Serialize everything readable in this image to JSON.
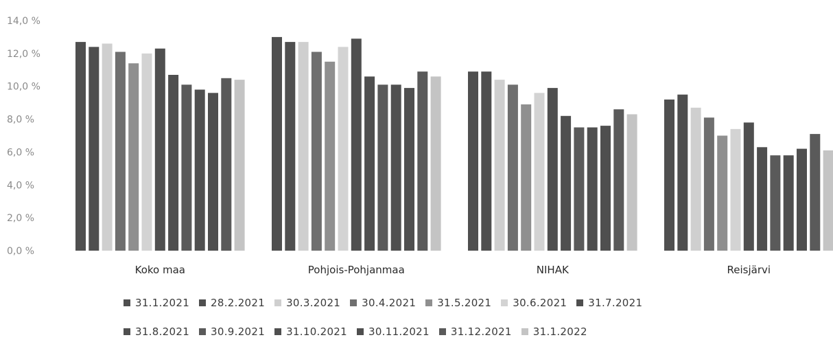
{
  "chart_data": {
    "type": "bar",
    "categories": [
      "Koko maa",
      "Pohjois-Pohjanmaa",
      "NIHAK",
      "Reisjärvi"
    ],
    "y_ticks": [
      "0,0 %",
      "2,0 %",
      "4,0 %",
      "6,0 %",
      "8,0 %",
      "10,0 %",
      "12,0 %",
      "14,0 %"
    ],
    "ylim": [
      0,
      14
    ],
    "grid": false,
    "legend_position": "bottom",
    "series": [
      {
        "name": "31.1.2021",
        "color": "#4f4f4f",
        "values": [
          12.7,
          13.0,
          10.9,
          9.2
        ]
      },
      {
        "name": "28.2.2021",
        "color": "#4f4f4f",
        "values": [
          12.4,
          12.7,
          10.9,
          9.5
        ]
      },
      {
        "name": "30.3.2021",
        "color": "#cfcfcf",
        "values": [
          12.6,
          12.7,
          10.4,
          8.7
        ]
      },
      {
        "name": "30.4.2021",
        "color": "#6f6f6f",
        "values": [
          12.1,
          12.1,
          10.1,
          8.1
        ]
      },
      {
        "name": "31.5.2021",
        "color": "#8f8f8f",
        "values": [
          11.4,
          11.5,
          8.9,
          7.0
        ]
      },
      {
        "name": "30.6.2021",
        "color": "#d3d3d3",
        "values": [
          12.0,
          12.4,
          9.6,
          7.4
        ]
      },
      {
        "name": "31.7.2021",
        "color": "#4f4f4f",
        "values": [
          12.3,
          12.9,
          9.9,
          7.8
        ]
      },
      {
        "name": "31.8.2021",
        "color": "#4f4f4f",
        "values": [
          10.7,
          10.6,
          8.2,
          6.3
        ]
      },
      {
        "name": "30.9.2021",
        "color": "#5a5a5a",
        "values": [
          10.1,
          10.1,
          7.5,
          5.8
        ]
      },
      {
        "name": "31.10.2021",
        "color": "#4f4f4f",
        "values": [
          9.8,
          10.1,
          7.5,
          5.8
        ]
      },
      {
        "name": "30.11.2021",
        "color": "#4f4f4f",
        "values": [
          9.6,
          9.9,
          7.6,
          6.2
        ]
      },
      {
        "name": "31.12.2021",
        "color": "#5a5a5a",
        "values": [
          10.5,
          10.9,
          8.6,
          7.1
        ]
      },
      {
        "name": "31.1.2022",
        "color": "#c4c4c4",
        "values": [
          10.4,
          10.6,
          8.3,
          6.1
        ]
      }
    ]
  }
}
